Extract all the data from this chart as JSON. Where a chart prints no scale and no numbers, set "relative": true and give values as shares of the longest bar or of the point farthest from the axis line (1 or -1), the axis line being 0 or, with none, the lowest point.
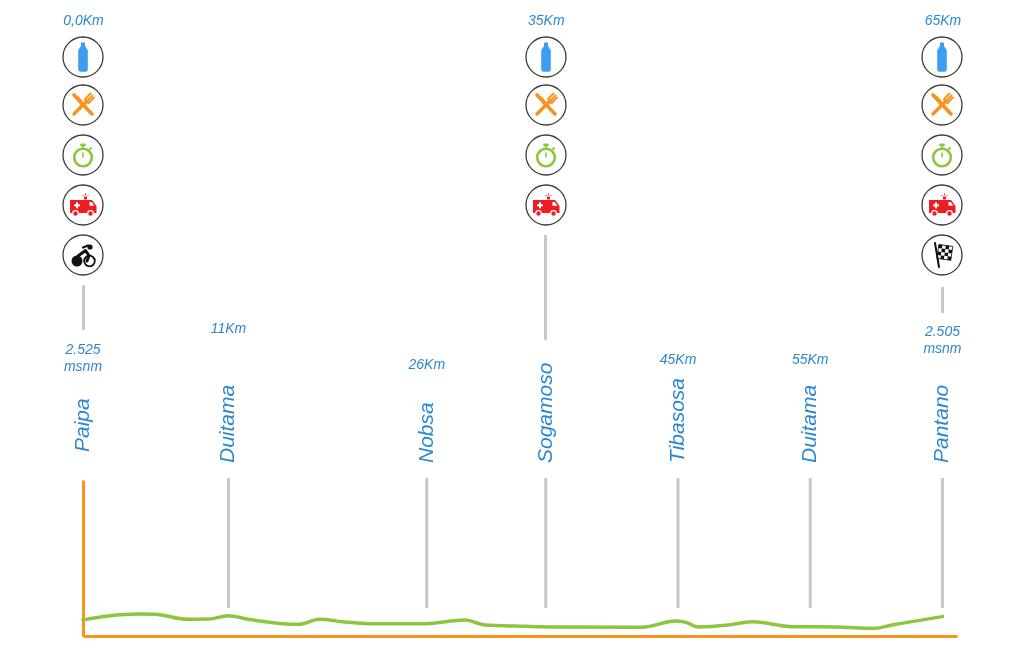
{
  "chart_data": {
    "type": "line",
    "relative": true,
    "x": [
      0,
      1.9,
      4.2,
      5.4,
      7.9,
      9.5,
      11.0,
      12.5,
      16.3,
      17.9,
      19.6,
      21.6,
      25.9,
      28.9,
      30.4,
      33.4,
      35.7,
      42.3,
      44.8,
      45.6,
      46.5,
      48.8,
      50.6,
      53.7,
      56.9,
      59.9,
      61.2,
      65.0
    ],
    "series": [
      {
        "color": "#8cc63f",
        "values": [
          0.73,
          0.91,
          1,
          0.99,
          0.76,
          0.77,
          0.92,
          0.76,
          0.53,
          0.76,
          0.65,
          0.56,
          0.56,
          0.73,
          0.5,
          0.44,
          0.41,
          0.4,
          0.68,
          0.62,
          0.41,
          0.5,
          0.65,
          0.42,
          0.41,
          0.35,
          0.5,
          0.88
        ]
      }
    ],
    "xlim": [
      0,
      66.1
    ],
    "xticks": [
      {
        "value": 0,
        "label": "0,0Km"
      },
      {
        "value": 35,
        "label": "35Km"
      },
      {
        "value": 65,
        "label": "65Km"
      }
    ],
    "tick_labels": "x",
    "line_style": "solid",
    "ref_lines": [
      {
        "axis": "x",
        "value": 11,
        "label": "Duitama",
        "color": "#c8c8c8"
      },
      {
        "axis": "x",
        "value": 26,
        "label": "Nobsa",
        "color": "#c8c8c8"
      },
      {
        "axis": "x",
        "value": 35,
        "label": "Sogamoso",
        "color": "#c8c8c8"
      },
      {
        "axis": "x",
        "value": 45,
        "label": "Tibasosa",
        "color": "#c8c8c8"
      },
      {
        "axis": "x",
        "value": 55,
        "label": "Duitama",
        "color": "#c8c8c8"
      },
      {
        "axis": "x",
        "value": 65,
        "label": "Pantano",
        "color": "#c8c8c8"
      }
    ],
    "annotations": [
      "Paipa",
      "2.525 msnm",
      "2.505 msnm",
      "11Km",
      "26Km",
      "45Km",
      "55Km"
    ]
  }
}
